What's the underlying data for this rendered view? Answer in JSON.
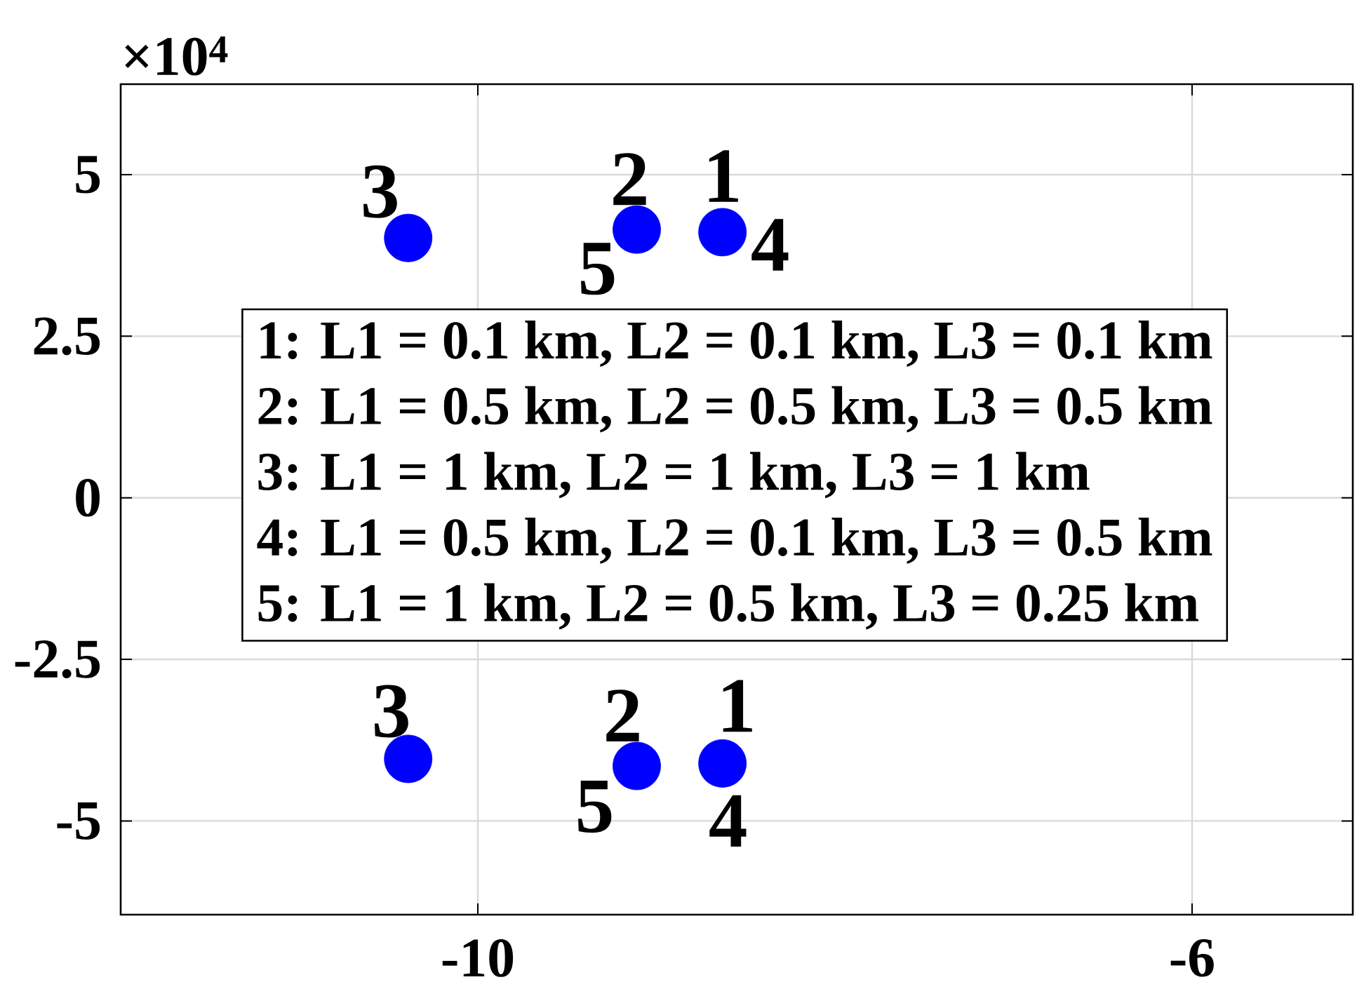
{
  "chart_data": {
    "type": "scatter",
    "x": [
      -10.39,
      -9.11,
      -8.63,
      -10.39,
      -9.11,
      -8.63
    ],
    "series": [
      {
        "color": "#0000ff",
        "values": [
          4.02,
          4.15,
          4.11,
          -4.04,
          -4.15,
          -4.11
        ]
      }
    ],
    "marker": "circle",
    "xlim": [
      -12,
      -5.1
    ],
    "xticks": [
      -10,
      -6
    ],
    "ylim": [
      -6.45,
      6.4
    ],
    "yticks": [
      -5,
      -2.5,
      0,
      2.5,
      5
    ],
    "grid": true,
    "annotations": [
      {
        "text": "3",
        "x": -10.39,
        "y": 4.02
      },
      {
        "text": "2",
        "x": -9.11,
        "y": 4.15
      },
      {
        "text": "1",
        "x": -8.63,
        "y": 4.11
      },
      {
        "text": "4",
        "x": -8.63,
        "y": 4.11
      },
      {
        "text": "5",
        "x": -9.11,
        "y": 4.15
      },
      {
        "text": "3",
        "x": -10.39,
        "y": -4.04
      },
      {
        "text": "2",
        "x": -9.11,
        "y": -4.15
      },
      {
        "text": "1",
        "x": -8.63,
        "y": -4.11
      },
      {
        "text": "5",
        "x": -9.11,
        "y": -4.15
      },
      {
        "text": "4",
        "x": -8.63,
        "y": -4.11
      },
      "×10$^{4}$",
      "1: L1 = 0.1 km, L2 = 0.1 km, L3 = 0.1 km",
      "2: L1 = 0.5 km, L2 = 0.5 km, L3 = 0.5 km",
      "3: L1 = 1 km, L2 = 1 km, L3 = 1 km",
      "4: L1 = 0.5 km, L2 = 0.1 km, L3 = 0.5 km",
      "5: L1 = 1 km, L2 = 0.5 km, L3 = 0.25 km"
    ]
  }
}
